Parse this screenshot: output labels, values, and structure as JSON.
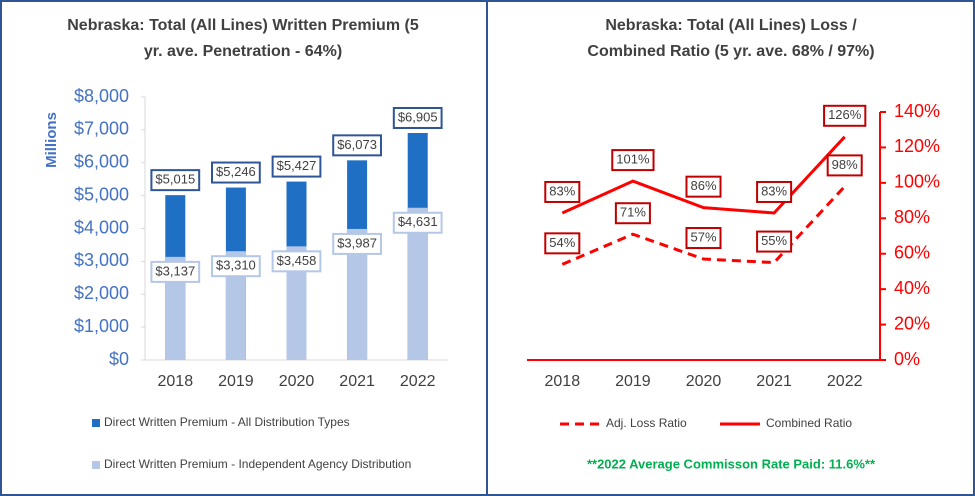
{
  "chart_data": [
    {
      "type": "bar",
      "title": "Nebraska: Total (All Lines) Written Premium (5 yr. ave. Penetration - 64%)",
      "y_label": "Millions",
      "categories": [
        "2018",
        "2019",
        "2020",
        "2021",
        "2022"
      ],
      "series": [
        {
          "name": "Direct Written Premium - All Distribution Types",
          "color": "#1f6fc5",
          "values": [
            5015,
            5246,
            5427,
            6073,
            6905
          ],
          "value_labels": [
            "$5,015",
            "$5,246",
            "$5,427",
            "$6,073",
            "$6,905"
          ]
        },
        {
          "name": "Direct Written Premium - Independent Agency Distribution",
          "color": "#b4c7e7",
          "values": [
            3137,
            3310,
            3458,
            3987,
            4631
          ],
          "value_labels": [
            "$3,137",
            "$3,310",
            "$3,458",
            "$3,987",
            "$4,631"
          ]
        }
      ],
      "ylim": [
        0,
        8000
      ],
      "yticks": [
        {
          "value": 0,
          "label": "$0"
        },
        {
          "value": 1000,
          "label": "$1,000"
        },
        {
          "value": 2000,
          "label": "$2,000"
        },
        {
          "value": 3000,
          "label": "$3,000"
        },
        {
          "value": 4000,
          "label": "$4,000"
        },
        {
          "value": 5000,
          "label": "$5,000"
        },
        {
          "value": 6000,
          "label": "$6,000"
        },
        {
          "value": 7000,
          "label": "$7,000"
        },
        {
          "value": 8000,
          "label": "$8,000"
        }
      ],
      "axis_color": "#4472c4",
      "y_axis_side": "left",
      "legend": "bottom",
      "bars": "overlap"
    },
    {
      "type": "line",
      "title": "Nebraska: Total (All Lines) Loss / Combined Ratio (5 yr. ave.  68% / 97%)",
      "categories": [
        "2018",
        "2019",
        "2020",
        "2021",
        "2022"
      ],
      "series": [
        {
          "name": "Adj. Loss Ratio",
          "color": "#ff0000",
          "dashed": true,
          "values": [
            54,
            71,
            57,
            55,
            98
          ],
          "value_labels": [
            "54%",
            "71%",
            "57%",
            "55%",
            "98%"
          ]
        },
        {
          "name": "Combined Ratio",
          "color": "#ff0000",
          "dashed": false,
          "values": [
            83,
            101,
            86,
            83,
            126
          ],
          "value_labels": [
            "83%",
            "101%",
            "86%",
            "83%",
            "126%"
          ]
        }
      ],
      "ylim": [
        0,
        140
      ],
      "yticks": [
        {
          "value": 0,
          "label": "0%"
        },
        {
          "value": 20,
          "label": "20%"
        },
        {
          "value": 40,
          "label": "40%"
        },
        {
          "value": 60,
          "label": "60%"
        },
        {
          "value": 80,
          "label": "80%"
        },
        {
          "value": 100,
          "label": "100%"
        },
        {
          "value": 120,
          "label": "120%"
        },
        {
          "value": 140,
          "label": "140%"
        }
      ],
      "axis_color": "#ff0000",
      "y_axis_side": "right",
      "legend": "bottom",
      "annotation": "**2022 Average Commisson Rate Paid: 11.6%**",
      "annotation_color": "#00b050"
    }
  ]
}
